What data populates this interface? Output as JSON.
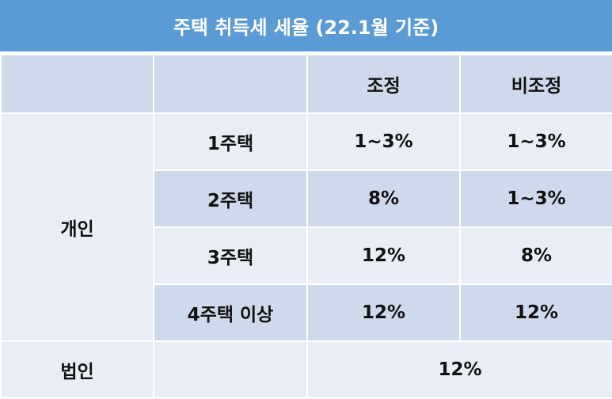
{
  "title": "주택 취득세 세율 (22.1월 기준)",
  "header": {
    "columns": [
      "조정",
      "비조정"
    ]
  },
  "individual": {
    "label": "개인",
    "rows": [
      {
        "label": "1주택",
        "cells": [
          "1~3%",
          "1~3%"
        ]
      },
      {
        "label": "2주택",
        "cells": [
          "8%",
          "1~3%"
        ]
      },
      {
        "label": "3주택",
        "cells": [
          "12%",
          "8%"
        ]
      },
      {
        "label": "4주택 이상",
        "cells": [
          "12%",
          "12%"
        ]
      }
    ]
  },
  "corporate": {
    "label": "법인",
    "value": "12%"
  }
}
